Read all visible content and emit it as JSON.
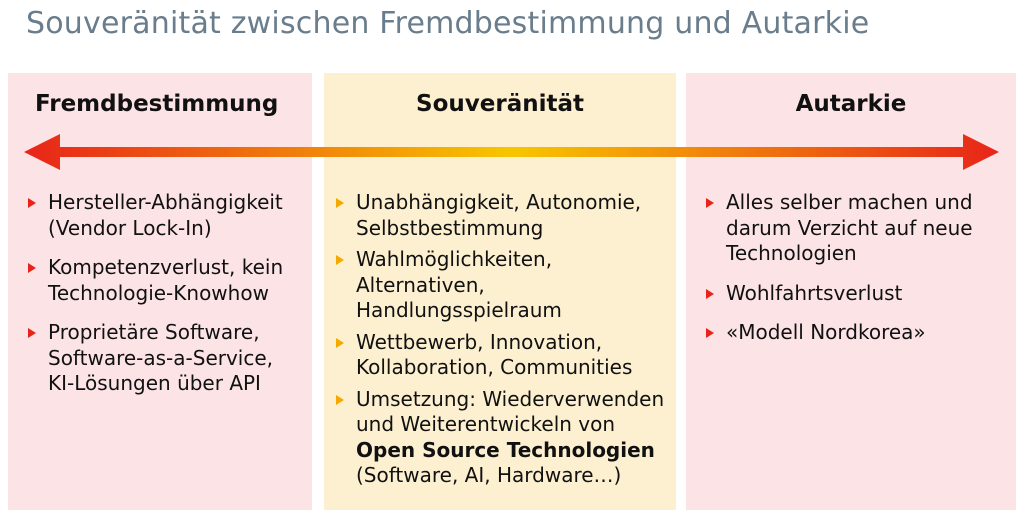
{
  "title": "Souveränität zwischen Fremdbestimmung und Autarkie",
  "columns": {
    "left": {
      "heading": "Fremdbestimmung",
      "items": [
        {
          "lines": [
            "Hersteller-Abhängigkeit",
            "(Vendor Lock-In)"
          ]
        },
        {
          "lines": [
            "Kompetenzverlust, kein",
            "Technologie-Knowhow"
          ]
        },
        {
          "lines": [
            "Proprietäre Software,",
            "Software-as-a-Service,",
            "KI-Lösungen über API"
          ]
        }
      ]
    },
    "middle": {
      "heading": "Souveränität",
      "items": [
        {
          "lines": [
            "Unabhängigkeit, Autonomie,",
            "Selbstbestimmung"
          ]
        },
        {
          "lines": [
            "Wahlmöglichkeiten,",
            "Alternativen,",
            "Handlungsspielraum"
          ]
        },
        {
          "lines": [
            "Wettbewerb, Innovation,",
            "Kollaboration, Communities"
          ]
        },
        {
          "lines": [
            "Umsetzung: Wiederverwenden",
            "und Weiterentwickeln von"
          ],
          "bold": "Open Source Technologien",
          "tail": "(Software, AI, Hardware…)"
        }
      ]
    },
    "right": {
      "heading": "Autarkie",
      "items": [
        {
          "lines": [
            "Alles selber machen und",
            "darum Verzicht auf neue",
            "Technologien"
          ]
        },
        {
          "lines": [
            "Wohlfahrtsverlust"
          ]
        },
        {
          "lines": [
            "«Modell Nordkorea»"
          ]
        }
      ]
    }
  },
  "colors": {
    "title": "#6a7d8c",
    "outer_panels": "#fce4e6",
    "middle_panel": "#fdf0d0",
    "arrow_red": "#e8241a",
    "arrow_yellow": "#f7c600"
  }
}
